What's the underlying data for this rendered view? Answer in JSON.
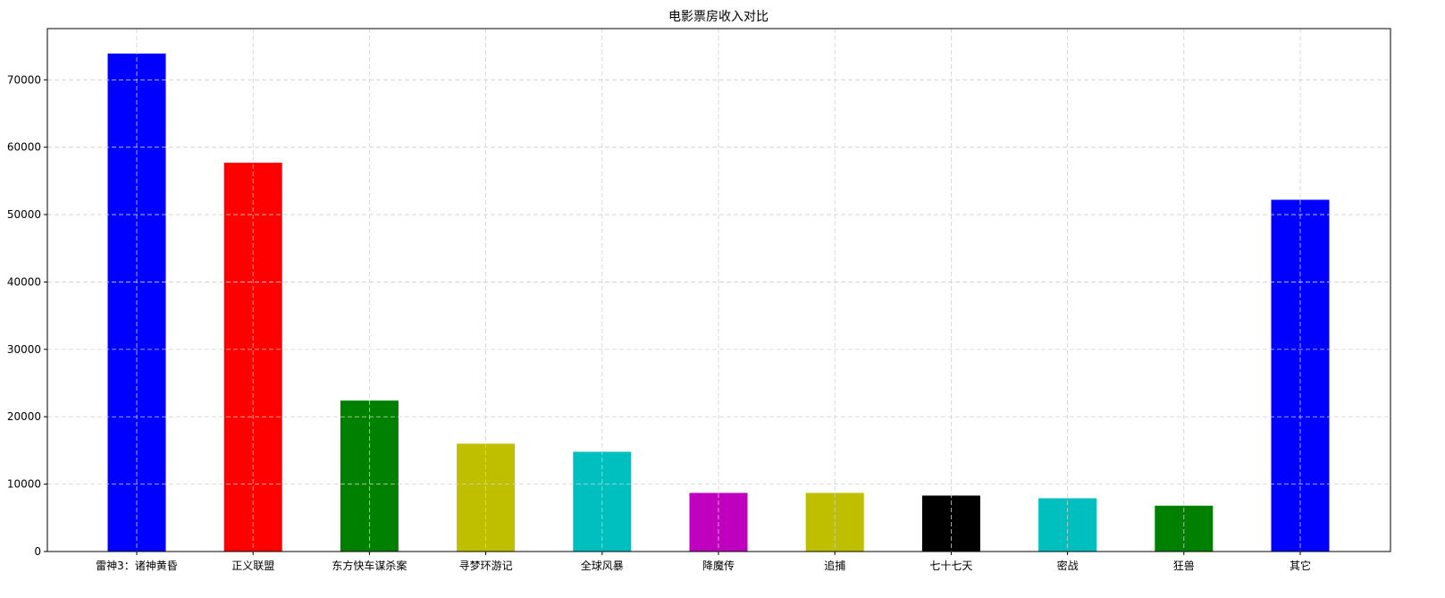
{
  "chart_data": {
    "type": "bar",
    "title": "电影票房收入对比",
    "xlabel": "",
    "ylabel": "",
    "categories": [
      "雷神3：诸神黄昏",
      "正义联盟",
      "东方快车谋杀案",
      "寻梦环游记",
      "全球风暴",
      "降魔传",
      "追捕",
      "七十七天",
      "密战",
      "狂兽",
      "其它"
    ],
    "values": [
      73900,
      57700,
      22400,
      16000,
      14800,
      8700,
      8700,
      8300,
      7900,
      6800,
      52200
    ],
    "colors": [
      "#0000ff",
      "#ff0000",
      "#008000",
      "#bfbf00",
      "#00bfbf",
      "#bf00bf",
      "#bfbf00",
      "#000000",
      "#00bfbf",
      "#008000",
      "#0000ff"
    ],
    "ylim": [
      0,
      77600
    ],
    "yticks": [
      0,
      10000,
      20000,
      30000,
      40000,
      50000,
      60000,
      70000
    ],
    "ytick_labels": [
      "0",
      "10000",
      "20000",
      "30000",
      "40000",
      "50000",
      "60000",
      "70000"
    ],
    "grid": true
  }
}
